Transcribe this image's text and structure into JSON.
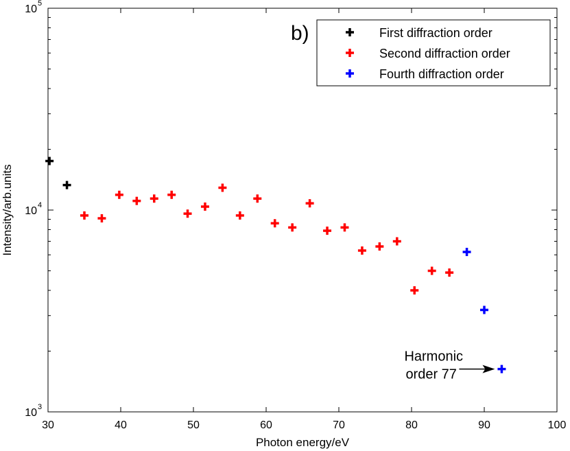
{
  "chart_data": {
    "type": "scatter",
    "panel_label": "b)",
    "xlabel": "Photon energy/eV",
    "ylabel": "Intensity/arb.units",
    "xlim": [
      30,
      100
    ],
    "ylim": [
      1000,
      100000
    ],
    "yscale": "log",
    "grid": false,
    "legend_position": "top-right",
    "x_ticks": [
      30,
      40,
      50,
      60,
      70,
      80,
      90,
      100
    ],
    "x_tick_labels": [
      "30",
      "40",
      "50",
      "60",
      "70",
      "80",
      "90",
      "100"
    ],
    "y_ticks": [
      1000,
      10000,
      100000
    ],
    "y_tick_labels": [
      {
        "base": "10",
        "exp": "3"
      },
      {
        "base": "10",
        "exp": "4"
      },
      {
        "base": "10",
        "exp": "5"
      }
    ],
    "series": [
      {
        "name": "First diffraction order",
        "color": "#000000",
        "marker": "plus",
        "x": [
          30.2,
          32.6
        ],
        "y": [
          17500,
          13300
        ]
      },
      {
        "name": "Second diffraction order",
        "color": "#ff0000",
        "marker": "plus",
        "x": [
          35.0,
          37.4,
          39.8,
          42.2,
          44.6,
          47.0,
          49.2,
          51.6,
          54.0,
          56.4,
          58.8,
          61.2,
          63.6,
          66.0,
          68.4,
          70.8,
          73.2,
          75.6,
          78.0,
          80.4,
          82.8,
          85.2
        ],
        "y": [
          9400,
          9100,
          11900,
          11100,
          11400,
          11900,
          9600,
          10400,
          12900,
          9400,
          11400,
          8600,
          8200,
          10800,
          7900,
          8200,
          6300,
          6600,
          7000,
          4000,
          5000,
          4900
        ]
      },
      {
        "name": "Fourth diffraction order",
        "color": "#0000ff",
        "marker": "plus",
        "x": [
          87.6,
          90.0,
          92.4
        ],
        "y": [
          6200,
          3200,
          1630
        ]
      }
    ],
    "annotations": [
      {
        "text_lines": [
          "Harmonic",
          "order 77"
        ],
        "x": 92.4,
        "y": 1630
      }
    ]
  }
}
